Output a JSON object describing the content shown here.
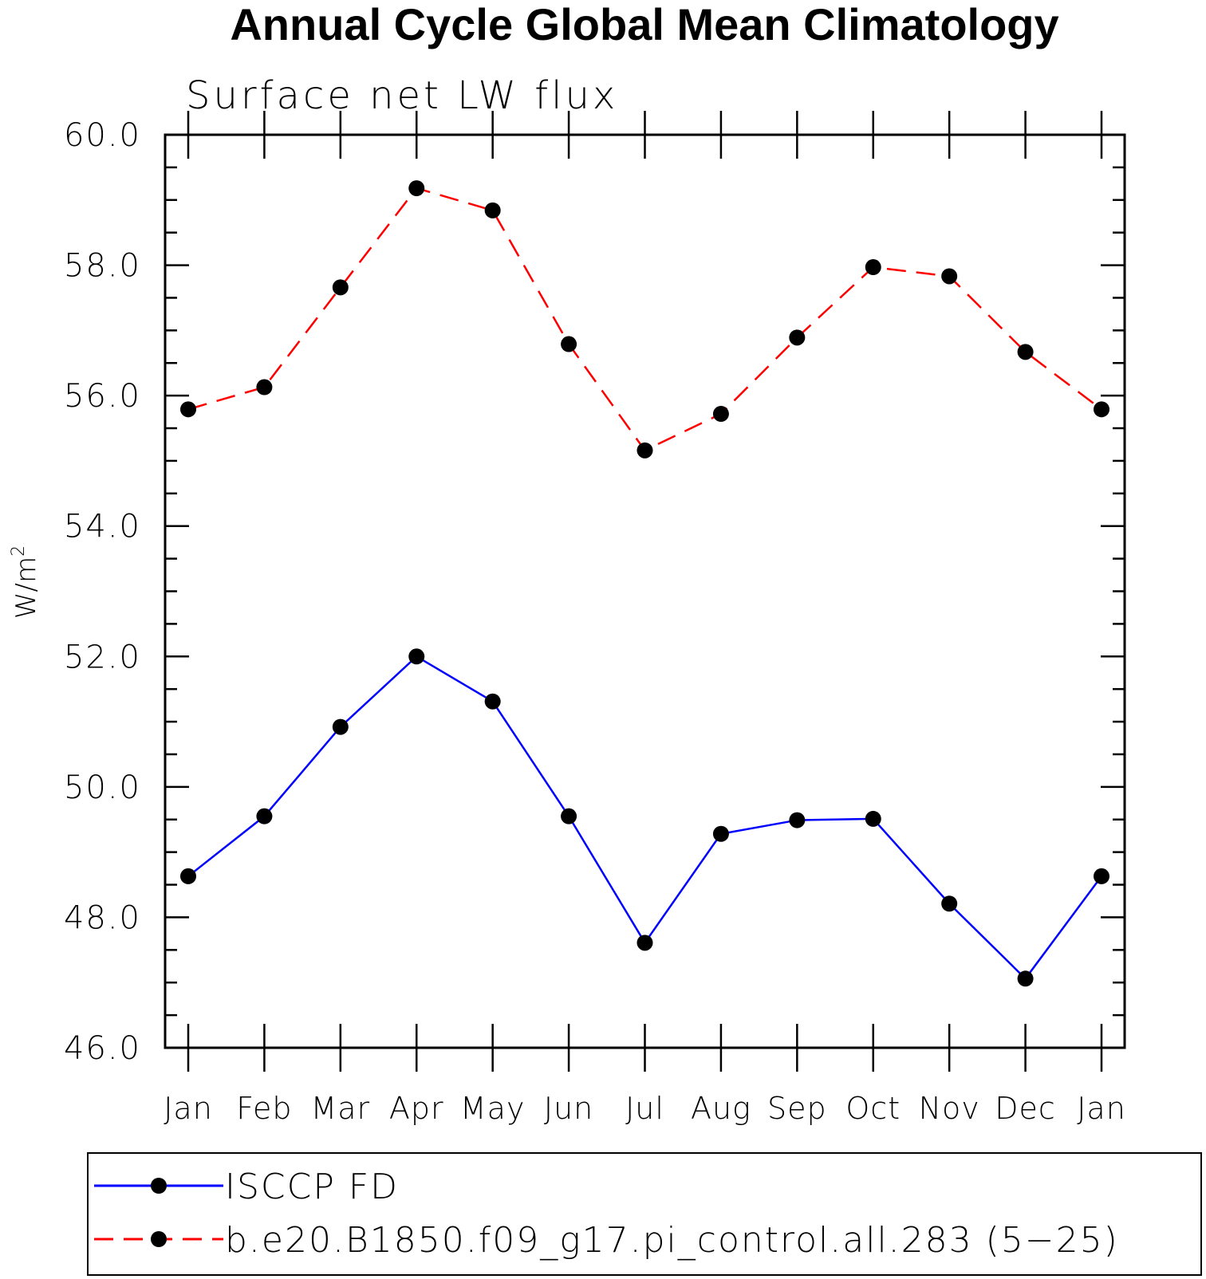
{
  "chart_data": {
    "type": "line",
    "title": "Annual Cycle Global Mean Climatology",
    "subtitle": "Surface net LW flux",
    "ylabel": "W/m",
    "ylabel_sup": "2",
    "xlabel": "",
    "categories": [
      "Jan",
      "Feb",
      "Mar",
      "Apr",
      "May",
      "Jun",
      "Jul",
      "Aug",
      "Sep",
      "Oct",
      "Nov",
      "Dec",
      "Jan"
    ],
    "ylim": [
      46.0,
      60.0
    ],
    "yticks": [
      "46.0",
      "48.0",
      "50.0",
      "52.0",
      "54.0",
      "56.0",
      "58.0",
      "60.0"
    ],
    "y_minor_step": 0.5,
    "grid": false,
    "legend_position": "bottom",
    "series": [
      {
        "name": "ISCCP FD",
        "color": "#0000ff",
        "line_style": "solid",
        "marker": "filled-circle",
        "values": [
          48.63,
          49.55,
          50.92,
          52.0,
          51.31,
          49.55,
          47.61,
          49.28,
          49.49,
          49.51,
          48.21,
          47.06,
          48.63
        ]
      },
      {
        "name": "b.e20.B1850.f09_g17.pi_control.all.283 (5−25)",
        "color": "#ff0000",
        "line_style": "dashed",
        "marker": "filled-circle",
        "values": [
          55.79,
          56.13,
          57.66,
          59.18,
          58.84,
          56.79,
          55.16,
          55.72,
          56.89,
          57.97,
          57.83,
          56.67,
          55.79
        ]
      }
    ]
  }
}
